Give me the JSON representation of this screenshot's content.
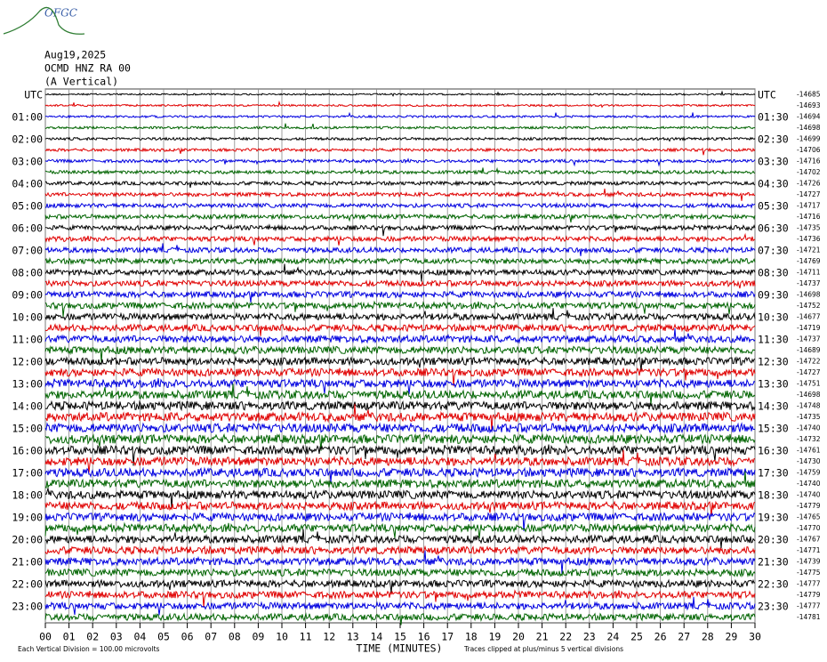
{
  "header": {
    "logo": "OFGC",
    "date": "Aug19,2025",
    "station": "OCMD HNZ RA 00",
    "component": "(A Vertical)"
  },
  "left_labels": [
    "UTC",
    "01:00",
    "02:00",
    "03:00",
    "04:00",
    "05:00",
    "06:00",
    "07:00",
    "08:00",
    "09:00",
    "10:00",
    "11:00",
    "12:00",
    "13:00",
    "14:00",
    "15:00",
    "16:00",
    "17:00",
    "18:00",
    "19:00",
    "20:00",
    "21:00",
    "22:00",
    "23:00"
  ],
  "right_labels": [
    "UTC",
    "01:30",
    "02:30",
    "03:30",
    "04:30",
    "05:30",
    "06:30",
    "07:30",
    "08:30",
    "09:30",
    "10:30",
    "11:30",
    "12:30",
    "13:30",
    "14:30",
    "15:30",
    "16:30",
    "17:30",
    "18:30",
    "19:30",
    "20:30",
    "21:30",
    "22:30",
    "23:30"
  ],
  "offsets": [
    -14685,
    -14693,
    -14694,
    -14698,
    -14699,
    -14706,
    -14716,
    -14702,
    -14726,
    -14727,
    -14717,
    -14716,
    -14735,
    -14736,
    -14721,
    -14769,
    -14711,
    -14737,
    -14698,
    -14752,
    -14677,
    -14719,
    -14737,
    -14689,
    -14722,
    -14727,
    -14751,
    -14698,
    -14748,
    -14735,
    -14740,
    -14732,
    -14761,
    -14730,
    -14759,
    -14740,
    -14740,
    -14779,
    -14765,
    -14770,
    -14767,
    -14771,
    -14739,
    -14775,
    -14777,
    -14779,
    -14777,
    -14781
  ],
  "trace_colors": [
    "#000000",
    "#e00000",
    "#0000e0",
    "#006400"
  ],
  "x_ticks": [
    "00",
    "01",
    "02",
    "03",
    "04",
    "05",
    "06",
    "07",
    "08",
    "09",
    "10",
    "11",
    "12",
    "13",
    "14",
    "15",
    "16",
    "17",
    "18",
    "19",
    "20",
    "21",
    "22",
    "23",
    "24",
    "25",
    "26",
    "27",
    "28",
    "29",
    "30"
  ],
  "x_axis_label": "TIME (MINUTES)",
  "footer": {
    "scale": "Each Vertical Division =  100.00 microvolts",
    "clip": "Traces clipped at plus/minus 5 vertical divisions"
  }
}
